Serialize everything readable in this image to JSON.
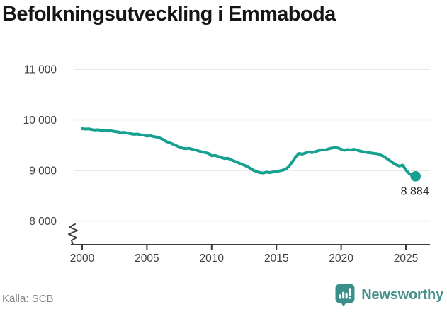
{
  "header": {
    "title": "Befolkningsutveckling i Emmaboda"
  },
  "footer": {
    "source": "Källa: SCB",
    "brand": "Newsworthy"
  },
  "colors": {
    "line": "#16a08f",
    "grid": "#e2e2e2",
    "axis": "#3d3d3d",
    "tick_label": "#3f3f3f",
    "title": "#151515",
    "end_label": "#2a2a2a",
    "source_text": "#868686",
    "brand": "#45918c",
    "badge": "#3a8f8a",
    "badge_glyph": "#ffffff"
  },
  "chart_data": {
    "type": "line",
    "title": "Befolkningsutveckling i Emmaboda",
    "xlabel": "",
    "ylabel": "",
    "source": "SCB",
    "grid": "horizontal",
    "axis_break": true,
    "legend": "none",
    "x_start": 2000,
    "x_step": 0.25,
    "values": [
      9825,
      9818,
      9822,
      9808,
      9800,
      9805,
      9792,
      9796,
      9780,
      9785,
      9770,
      9762,
      9748,
      9754,
      9738,
      9726,
      9715,
      9720,
      9705,
      9698,
      9680,
      9688,
      9672,
      9660,
      9640,
      9610,
      9572,
      9548,
      9522,
      9492,
      9462,
      9440,
      9430,
      9438,
      9418,
      9405,
      9385,
      9368,
      9352,
      9338,
      9290,
      9298,
      9275,
      9255,
      9235,
      9240,
      9210,
      9185,
      9160,
      9130,
      9105,
      9075,
      9040,
      9000,
      8975,
      8955,
      8950,
      8966,
      8956,
      8970,
      8980,
      8992,
      9005,
      9030,
      9090,
      9180,
      9270,
      9335,
      9322,
      9345,
      9365,
      9352,
      9372,
      9390,
      9410,
      9405,
      9425,
      9440,
      9452,
      9445,
      9420,
      9400,
      9412,
      9405,
      9418,
      9400,
      9380,
      9368,
      9355,
      9348,
      9338,
      9330,
      9310,
      9280,
      9240,
      9195,
      9150,
      9110,
      9085,
      9105,
      9010,
      8940,
      8900,
      8884
    ],
    "end_value": 8884,
    "end_label": "8 884",
    "y_ticks": [
      11000,
      10000,
      9000,
      8000
    ],
    "y_tick_labels": [
      "11 000",
      "10 000",
      "9 000",
      "8 000"
    ],
    "x_ticks": [
      2000,
      2005,
      2010,
      2015,
      2020,
      2025
    ],
    "x_tick_labels": [
      "2000",
      "2005",
      "2010",
      "2015",
      "2020",
      "2025"
    ],
    "ylim_shown": [
      8000,
      11000
    ],
    "xlim": [
      1999.4,
      2026.9
    ]
  }
}
